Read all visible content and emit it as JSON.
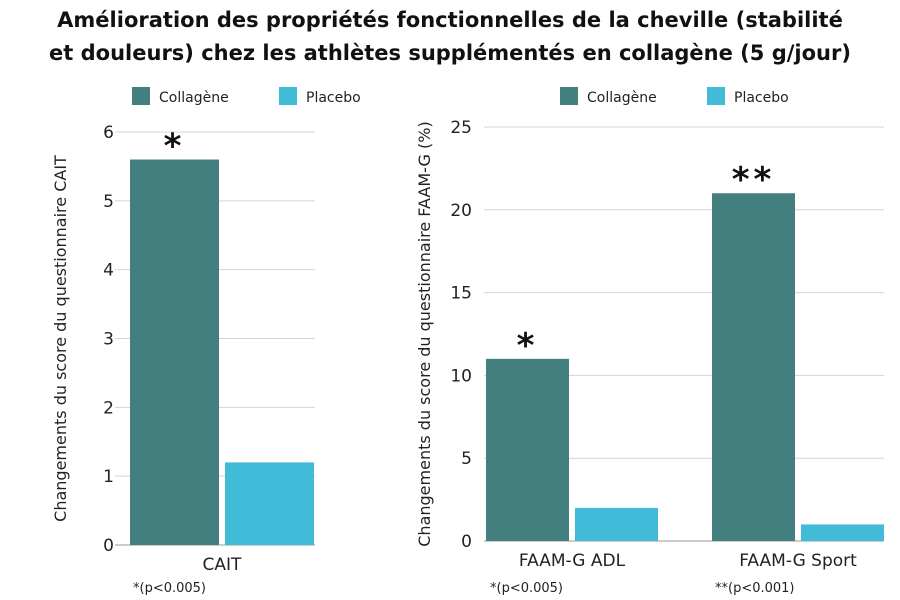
{
  "title_line1": "Amélioration des propriétés fonctionnelles de la cheville (stabilité",
  "title_line2": "et douleurs) chez les athlètes supplémentés en collagène (5 g/jour)",
  "colors": {
    "collagen": "#437f7e",
    "placebo": "#42bbd8",
    "grid": "#d4d4d4",
    "axis": "#9a9a9a"
  },
  "chart_data": [
    {
      "type": "bar",
      "categories": [
        "CAIT"
      ],
      "series": [
        {
          "name": "Collagène",
          "values": [
            5.6
          ]
        },
        {
          "name": "Placebo",
          "values": [
            1.2
          ]
        }
      ],
      "significance": [
        [
          "*",
          ""
        ]
      ],
      "ylabel": "Changements du score du questionnaire CAIT",
      "ylim": [
        0,
        6
      ],
      "yticks": [
        0,
        1,
        2,
        3,
        4,
        5,
        6
      ],
      "grid": true,
      "legend": "top",
      "footnote": "*(p<0.005)"
    },
    {
      "type": "bar",
      "categories": [
        "FAAM-G ADL",
        "FAAM-G Sport"
      ],
      "series": [
        {
          "name": "Collagène",
          "values": [
            11,
            21
          ]
        },
        {
          "name": "Placebo",
          "values": [
            2,
            1
          ]
        }
      ],
      "significance": [
        [
          "*",
          ""
        ],
        [
          "**",
          ""
        ]
      ],
      "ylabel": "Changements du score du questionnaire FAAM-G (%)",
      "ylim": [
        0,
        25
      ],
      "yticks": [
        0,
        5,
        10,
        15,
        20,
        25
      ],
      "grid": true,
      "legend": "top",
      "footnotes": [
        "*(p<0.005)",
        "**(p<0.001)"
      ]
    }
  ]
}
